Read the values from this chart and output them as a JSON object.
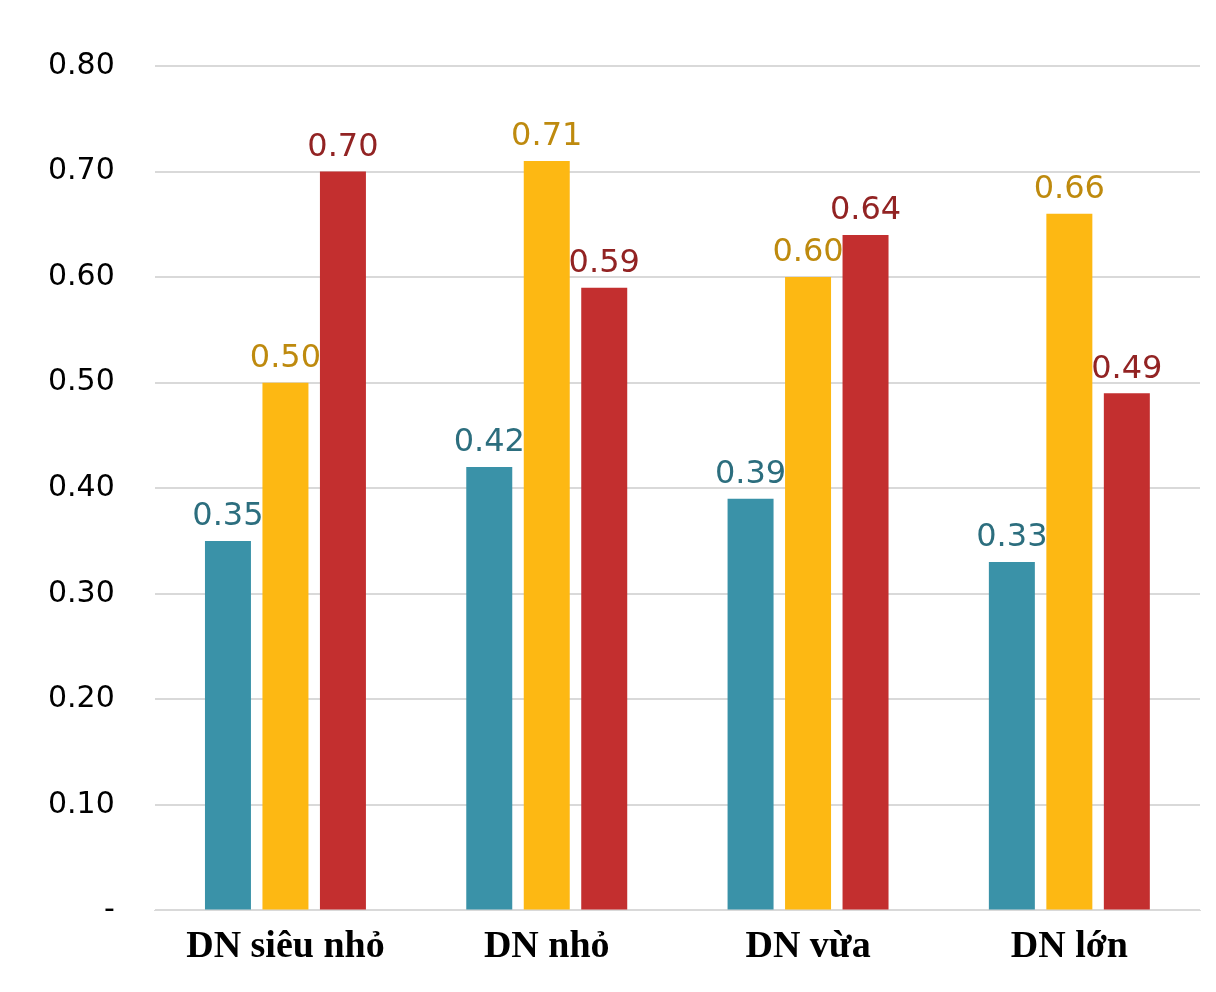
{
  "chart_data": {
    "type": "bar",
    "categories": [
      "DN siêu nhỏ",
      "DN nhỏ",
      "DN vừa",
      "DN lớn"
    ],
    "series": [
      {
        "color": "#3a92a8",
        "values": [
          0.35,
          0.42,
          0.39,
          0.33
        ],
        "value_labels": [
          "0.35",
          "0.42",
          "0.39",
          "0.33"
        ]
      },
      {
        "color": "#fdb813",
        "values": [
          0.5,
          0.71,
          0.6,
          0.66
        ],
        "value_labels": [
          "0.50",
          "0.71",
          "0.60",
          "0.66"
        ]
      },
      {
        "color": "#c32f2f",
        "values": [
          0.7,
          0.59,
          0.64,
          0.49
        ],
        "value_labels": [
          "0.70",
          "0.59",
          "0.64",
          "0.49"
        ]
      }
    ],
    "ylim": [
      0,
      0.8
    ],
    "yticks": [
      {
        "value": 0,
        "label": "-"
      },
      {
        "value": 0.1,
        "label": "0.10"
      },
      {
        "value": 0.2,
        "label": "0.20"
      },
      {
        "value": 0.3,
        "label": "0.30"
      },
      {
        "value": 0.4,
        "label": "0.40"
      },
      {
        "value": 0.5,
        "label": "0.50"
      },
      {
        "value": 0.6,
        "label": "0.60"
      },
      {
        "value": 0.7,
        "label": "0.70"
      },
      {
        "value": 0.8,
        "label": "0.80"
      }
    ],
    "grid": "y",
    "legend": false
  }
}
